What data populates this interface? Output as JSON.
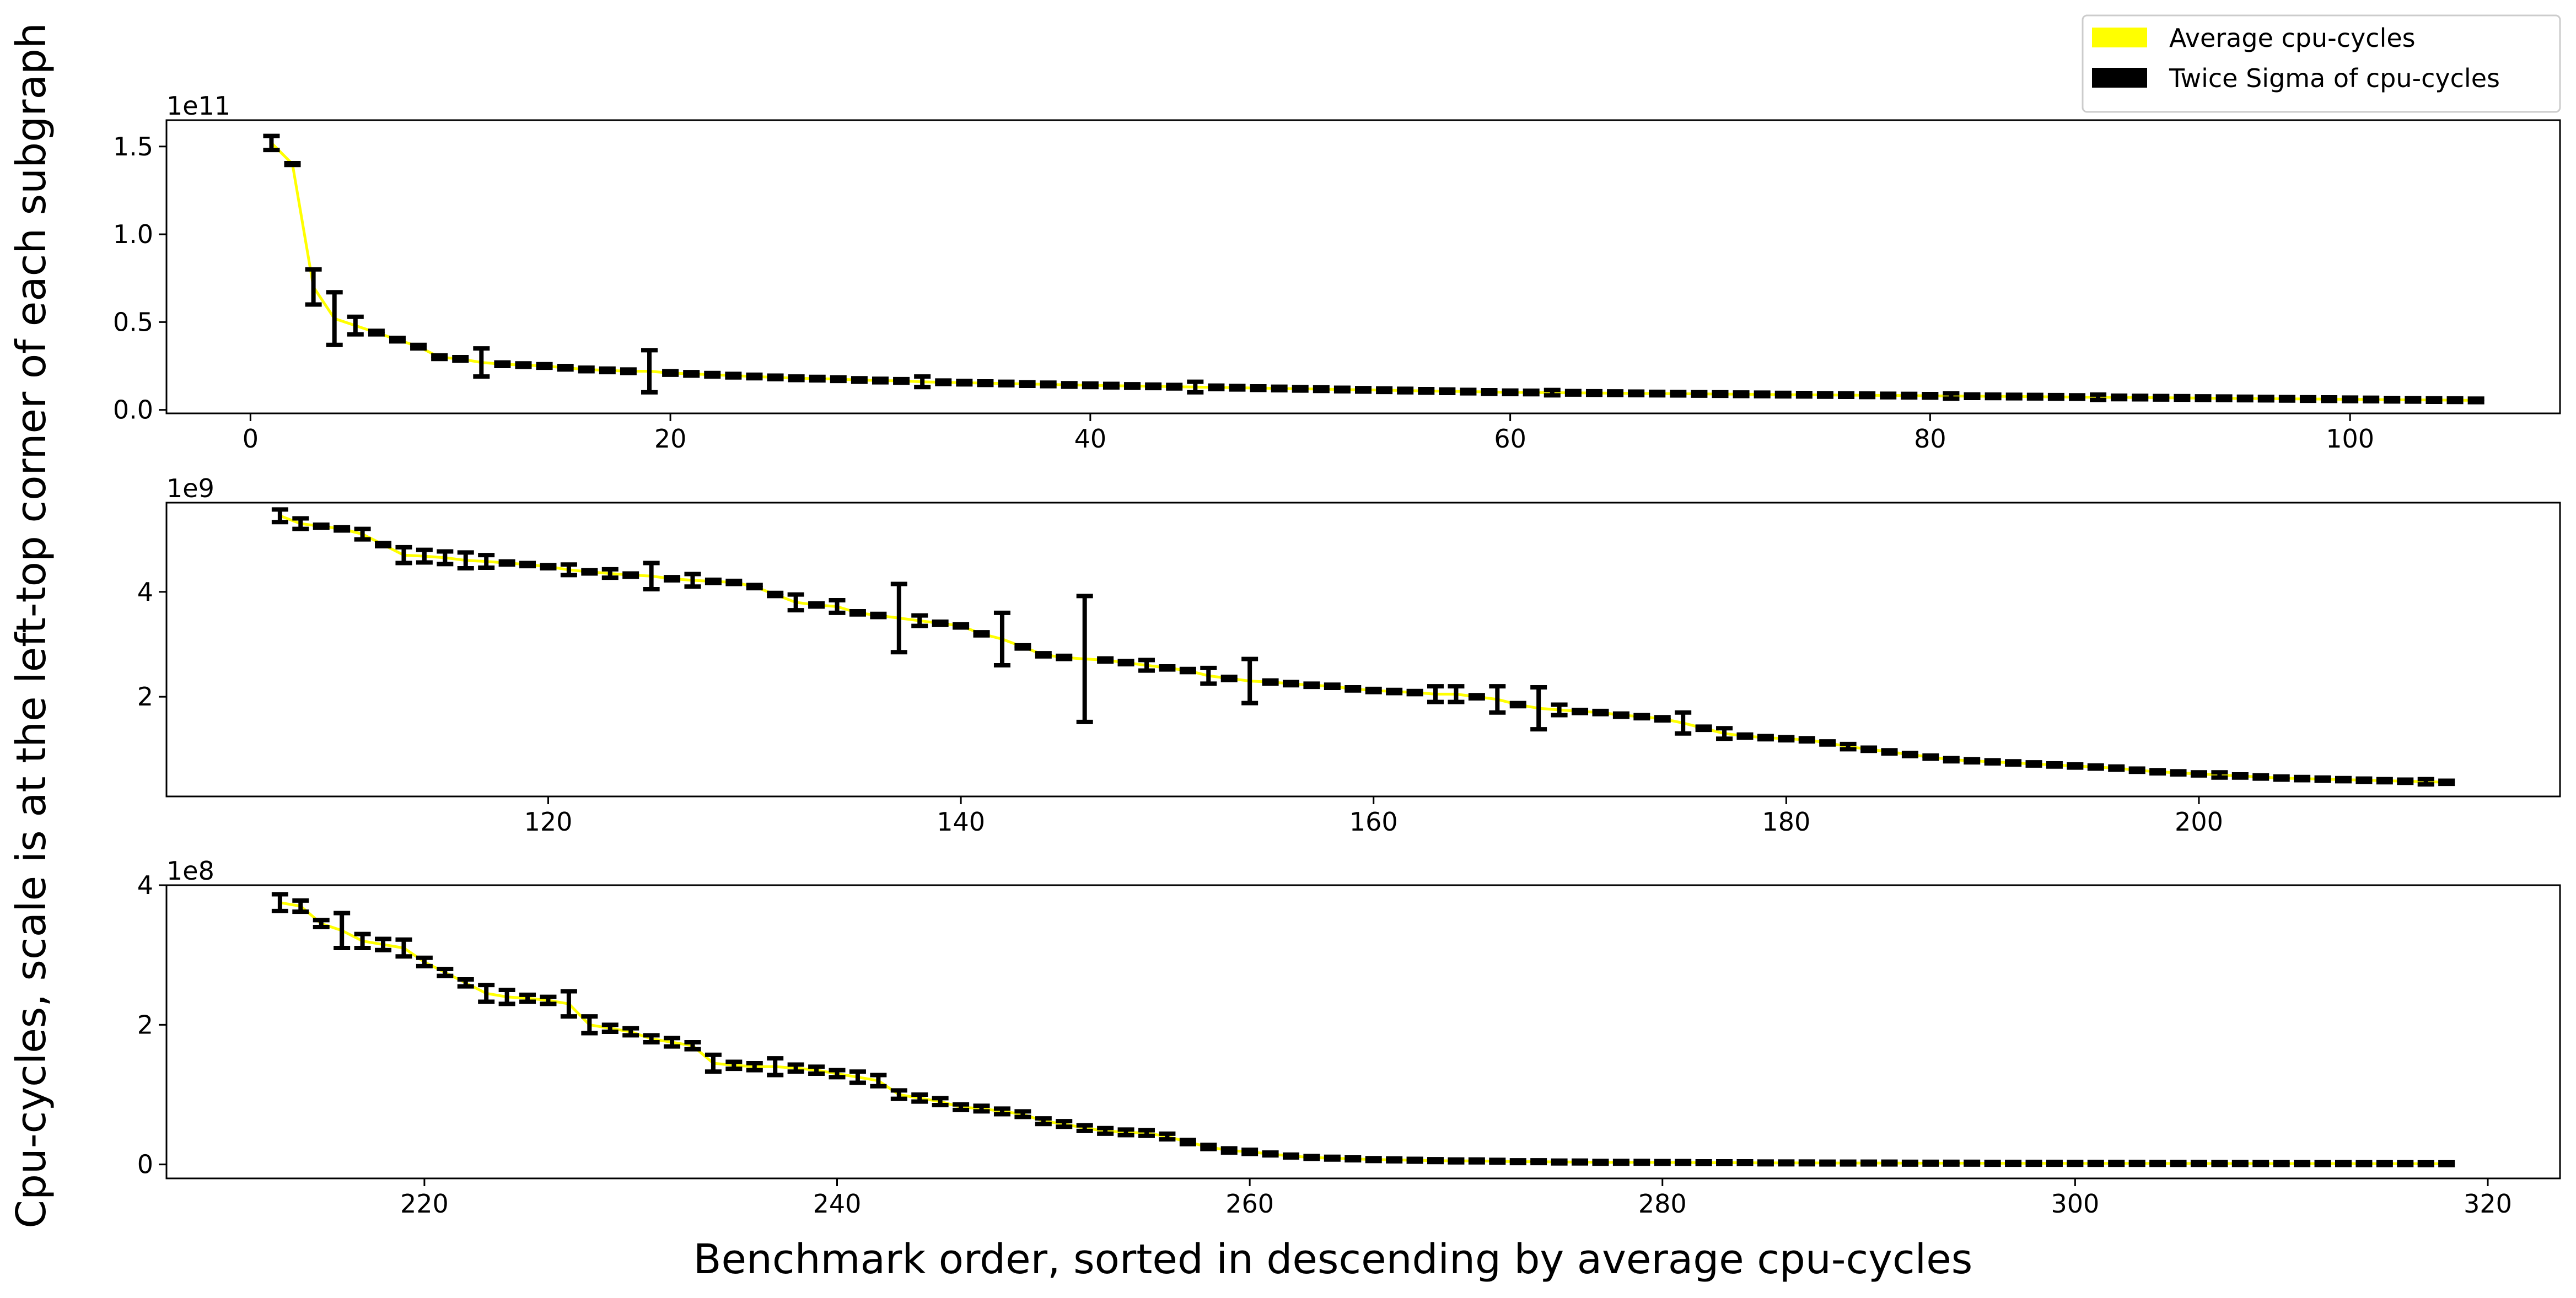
{
  "figure": {
    "ylabel": "Cpu-cycles, scale is at the left-top corner of each subgraph",
    "xlabel": "Benchmark order, sorted in descending by average cpu-cycles",
    "legend": {
      "placement": "top-right",
      "items": [
        {
          "label": "Average cpu-cycles",
          "color": "#ffff00"
        },
        {
          "label": "Twice Sigma of cpu-cycles",
          "color": "#000000"
        }
      ]
    }
  },
  "chart_data": [
    {
      "type": "line",
      "offset_text": "1e11",
      "scale": 100000000000.0,
      "xlim": [
        -4,
        110
      ],
      "ylim": [
        -0.02,
        1.65
      ],
      "xticks": [
        0,
        20,
        40,
        60,
        80,
        100
      ],
      "xtick_labels": [
        "0",
        "20",
        "40",
        "60",
        "80",
        "100"
      ],
      "yticks": [
        0,
        0.5,
        1,
        1.5
      ],
      "ytick_labels": [
        "0.0",
        "0.5",
        "1.0",
        "1.5"
      ],
      "series": [
        {
          "x": [
            1,
            2,
            3,
            4,
            5,
            6,
            7,
            8,
            9,
            10,
            11,
            12,
            13,
            14,
            15,
            16,
            17,
            18,
            19,
            20,
            21,
            22,
            23,
            24,
            25,
            26,
            27,
            28,
            29,
            30,
            31,
            32,
            33,
            34,
            35,
            36,
            37,
            38,
            39,
            40,
            41,
            42,
            43,
            44,
            45,
            46,
            47,
            48,
            49,
            50,
            51,
            52,
            53,
            54,
            55,
            56,
            57,
            58,
            59,
            60,
            61,
            62,
            63,
            64,
            65,
            66,
            67,
            68,
            69,
            70,
            71,
            72,
            73,
            74,
            75,
            76,
            77,
            78,
            79,
            80,
            81,
            82,
            83,
            84,
            85,
            86,
            87,
            88,
            89,
            90,
            91,
            92,
            93,
            94,
            95,
            96,
            97,
            98,
            99,
            100,
            101,
            102,
            103,
            104,
            105,
            106
          ],
          "mean": [
            1.52,
            1.4,
            0.7,
            0.52,
            0.48,
            0.44,
            0.4,
            0.36,
            0.3,
            0.29,
            0.27,
            0.26,
            0.255,
            0.25,
            0.24,
            0.23,
            0.225,
            0.22,
            0.22,
            0.21,
            0.205,
            0.2,
            0.195,
            0.19,
            0.185,
            0.18,
            0.178,
            0.175,
            0.17,
            0.167,
            0.165,
            0.16,
            0.157,
            0.155,
            0.152,
            0.15,
            0.147,
            0.145,
            0.142,
            0.14,
            0.138,
            0.136,
            0.134,
            0.132,
            0.13,
            0.128,
            0.126,
            0.124,
            0.122,
            0.12,
            0.118,
            0.116,
            0.114,
            0.112,
            0.11,
            0.108,
            0.106,
            0.104,
            0.102,
            0.1,
            0.099,
            0.098,
            0.097,
            0.096,
            0.095,
            0.094,
            0.093,
            0.092,
            0.091,
            0.09,
            0.089,
            0.088,
            0.087,
            0.086,
            0.085,
            0.084,
            0.083,
            0.082,
            0.081,
            0.08,
            0.079,
            0.078,
            0.077,
            0.076,
            0.075,
            0.074,
            0.073,
            0.072,
            0.071,
            0.07,
            0.069,
            0.068,
            0.067,
            0.066,
            0.065,
            0.064,
            0.063,
            0.062,
            0.061,
            0.06,
            0.059,
            0.058,
            0.057,
            0.056,
            0.055,
            0.054
          ],
          "err": [
            0.04,
            0.005,
            0.1,
            0.15,
            0.05,
            0.01,
            0.01,
            0.01,
            0.01,
            0.01,
            0.08,
            0.01,
            0.01,
            0.01,
            0.01,
            0.01,
            0.01,
            0.01,
            0.12,
            0.01,
            0.01,
            0.01,
            0.01,
            0.01,
            0.01,
            0.01,
            0.01,
            0.01,
            0.01,
            0.01,
            0.01,
            0.03,
            0.01,
            0.01,
            0.01,
            0.01,
            0.01,
            0.01,
            0.01,
            0.01,
            0.01,
            0.01,
            0.01,
            0.01,
            0.03,
            0.01,
            0.01,
            0.01,
            0.01,
            0.01,
            0.01,
            0.01,
            0.01,
            0.01,
            0.01,
            0.01,
            0.01,
            0.01,
            0.01,
            0.01,
            0.01,
            0.015,
            0.01,
            0.01,
            0.01,
            0.01,
            0.01,
            0.01,
            0.01,
            0.01,
            0.01,
            0.01,
            0.01,
            0.01,
            0.01,
            0.01,
            0.01,
            0.01,
            0.01,
            0.01,
            0.015,
            0.01,
            0.01,
            0.01,
            0.01,
            0.01,
            0.01,
            0.015,
            0.01,
            0.01,
            0.01,
            0.01,
            0.01,
            0.01,
            0.01,
            0.01,
            0.01,
            0.01,
            0.01,
            0.01,
            0.01,
            0.01,
            0.01,
            0.01,
            0.01,
            0.01
          ]
        }
      ]
    },
    {
      "type": "line",
      "offset_text": "1e9",
      "scale": 1000000000.0,
      "xlim": [
        101.5,
        217.5
      ],
      "ylim": [
        0.1,
        5.7
      ],
      "xticks": [
        120,
        140,
        160,
        180,
        200
      ],
      "xtick_labels": [
        "120",
        "140",
        "160",
        "180",
        "200"
      ],
      "yticks": [
        2,
        4
      ],
      "ytick_labels": [
        "2",
        "4"
      ],
      "series": [
        {
          "x": [
            107,
            108,
            109,
            110,
            111,
            112,
            113,
            114,
            115,
            116,
            117,
            118,
            119,
            120,
            121,
            122,
            123,
            124,
            125,
            126,
            127,
            128,
            129,
            130,
            131,
            132,
            133,
            134,
            135,
            136,
            137,
            138,
            139,
            140,
            141,
            142,
            143,
            144,
            145,
            146,
            147,
            148,
            149,
            150,
            151,
            152,
            153,
            154,
            155,
            156,
            157,
            158,
            159,
            160,
            161,
            162,
            163,
            164,
            165,
            166,
            167,
            168,
            169,
            170,
            171,
            172,
            173,
            174,
            175,
            176,
            177,
            178,
            179,
            180,
            181,
            182,
            183,
            184,
            185,
            186,
            187,
            188,
            189,
            190,
            191,
            192,
            193,
            194,
            195,
            196,
            197,
            198,
            199,
            200,
            201,
            202,
            203,
            204,
            205,
            206,
            207,
            208,
            209,
            210,
            211,
            212
          ],
          "mean": [
            5.45,
            5.3,
            5.25,
            5.2,
            5.1,
            4.9,
            4.7,
            4.68,
            4.65,
            4.6,
            4.58,
            4.55,
            4.52,
            4.48,
            4.42,
            4.38,
            4.35,
            4.32,
            4.3,
            4.25,
            4.22,
            4.2,
            4.18,
            4.1,
            3.95,
            3.8,
            3.75,
            3.72,
            3.6,
            3.55,
            3.5,
            3.45,
            3.4,
            3.35,
            3.2,
            3.1,
            2.95,
            2.8,
            2.75,
            2.72,
            2.7,
            2.65,
            2.6,
            2.55,
            2.5,
            2.4,
            2.35,
            2.3,
            2.28,
            2.25,
            2.22,
            2.2,
            2.15,
            2.12,
            2.1,
            2.08,
            2.05,
            2.05,
            2.0,
            1.95,
            1.85,
            1.78,
            1.75,
            1.72,
            1.7,
            1.65,
            1.62,
            1.58,
            1.5,
            1.4,
            1.3,
            1.25,
            1.22,
            1.2,
            1.18,
            1.12,
            1.05,
            1.0,
            0.95,
            0.9,
            0.85,
            0.8,
            0.78,
            0.76,
            0.74,
            0.72,
            0.7,
            0.68,
            0.66,
            0.64,
            0.6,
            0.57,
            0.55,
            0.53,
            0.51,
            0.49,
            0.47,
            0.45,
            0.44,
            0.43,
            0.42,
            0.41,
            0.4,
            0.39,
            0.38,
            0.37
          ],
          "err": [
            0.12,
            0.1,
            0.03,
            0.03,
            0.1,
            0.03,
            0.15,
            0.12,
            0.12,
            0.15,
            0.12,
            0.03,
            0.03,
            0.03,
            0.1,
            0.03,
            0.08,
            0.03,
            0.25,
            0.03,
            0.12,
            0.03,
            0.03,
            0.03,
            0.03,
            0.15,
            0.03,
            0.12,
            0.03,
            0.03,
            0.65,
            0.1,
            0.03,
            0.03,
            0.03,
            0.5,
            0.03,
            0.03,
            0.03,
            1.2,
            0.03,
            0.03,
            0.1,
            0.03,
            0.03,
            0.15,
            0.03,
            0.42,
            0.03,
            0.03,
            0.03,
            0.03,
            0.03,
            0.03,
            0.03,
            0.03,
            0.15,
            0.15,
            0.03,
            0.25,
            0.03,
            0.4,
            0.1,
            0.03,
            0.03,
            0.03,
            0.03,
            0.03,
            0.2,
            0.03,
            0.1,
            0.03,
            0.03,
            0.03,
            0.03,
            0.03,
            0.05,
            0.03,
            0.03,
            0.03,
            0.03,
            0.03,
            0.03,
            0.03,
            0.03,
            0.03,
            0.03,
            0.03,
            0.03,
            0.03,
            0.03,
            0.03,
            0.03,
            0.03,
            0.05,
            0.03,
            0.03,
            0.03,
            0.03,
            0.03,
            0.03,
            0.03,
            0.03,
            0.03,
            0.05,
            0.03
          ]
        }
      ]
    },
    {
      "type": "line",
      "offset_text": "1e8",
      "scale": 100000000.0,
      "xlim": [
        207.5,
        323.5
      ],
      "ylim": [
        -0.2,
        4.0
      ],
      "xticks": [
        220,
        240,
        260,
        280,
        300,
        320
      ],
      "xtick_labels": [
        "220",
        "240",
        "260",
        "280",
        "300",
        "320"
      ],
      "yticks": [
        0,
        2,
        4
      ],
      "ytick_labels": [
        "0",
        "2",
        "4"
      ],
      "series": [
        {
          "x": [
            213,
            214,
            215,
            216,
            217,
            218,
            219,
            220,
            221,
            222,
            223,
            224,
            225,
            226,
            227,
            228,
            229,
            230,
            231,
            232,
            233,
            234,
            235,
            236,
            237,
            238,
            239,
            240,
            241,
            242,
            243,
            244,
            245,
            246,
            247,
            248,
            249,
            250,
            251,
            252,
            253,
            254,
            255,
            256,
            257,
            258,
            259,
            260,
            261,
            262,
            263,
            264,
            265,
            266,
            267,
            268,
            269,
            270,
            271,
            272,
            273,
            274,
            275,
            276,
            277,
            278,
            279,
            280,
            281,
            282,
            283,
            284,
            285,
            286,
            287,
            288,
            289,
            290,
            291,
            292,
            293,
            294,
            295,
            296,
            297,
            298,
            299,
            300,
            301,
            302,
            303,
            304,
            305,
            306,
            307,
            308,
            309,
            310,
            311,
            312,
            313,
            314,
            315,
            316,
            317,
            318
          ],
          "mean": [
            3.75,
            3.7,
            3.45,
            3.35,
            3.2,
            3.15,
            3.1,
            2.9,
            2.75,
            2.6,
            2.45,
            2.4,
            2.38,
            2.35,
            2.3,
            2.0,
            1.95,
            1.9,
            1.8,
            1.75,
            1.7,
            1.45,
            1.42,
            1.4,
            1.4,
            1.38,
            1.35,
            1.3,
            1.25,
            1.2,
            1.0,
            0.95,
            0.9,
            0.82,
            0.8,
            0.76,
            0.72,
            0.62,
            0.58,
            0.52,
            0.48,
            0.46,
            0.45,
            0.4,
            0.32,
            0.25,
            0.2,
            0.18,
            0.15,
            0.12,
            0.1,
            0.09,
            0.08,
            0.07,
            0.065,
            0.06,
            0.055,
            0.05,
            0.05,
            0.045,
            0.04,
            0.04,
            0.035,
            0.035,
            0.03,
            0.03,
            0.03,
            0.028,
            0.028,
            0.025,
            0.025,
            0.025,
            0.022,
            0.022,
            0.022,
            0.02,
            0.02,
            0.02,
            0.02,
            0.018,
            0.018,
            0.018,
            0.018,
            0.016,
            0.016,
            0.016,
            0.016,
            0.015,
            0.015,
            0.015,
            0.015,
            0.014,
            0.014,
            0.014,
            0.013,
            0.013,
            0.013,
            0.012,
            0.012,
            0.012,
            0.012,
            0.011,
            0.011,
            0.011,
            0.01,
            0.01
          ],
          "err": [
            0.12,
            0.08,
            0.05,
            0.25,
            0.1,
            0.08,
            0.12,
            0.06,
            0.05,
            0.05,
            0.12,
            0.1,
            0.05,
            0.05,
            0.18,
            0.12,
            0.05,
            0.05,
            0.05,
            0.06,
            0.05,
            0.12,
            0.05,
            0.05,
            0.12,
            0.05,
            0.05,
            0.05,
            0.08,
            0.08,
            0.06,
            0.05,
            0.05,
            0.04,
            0.04,
            0.04,
            0.04,
            0.04,
            0.04,
            0.04,
            0.04,
            0.04,
            0.04,
            0.04,
            0.03,
            0.03,
            0.03,
            0.03,
            0.02,
            0.02,
            0.02,
            0.02,
            0.02,
            0.02,
            0.02,
            0.02,
            0.02,
            0.02,
            0.02,
            0.02,
            0.02,
            0.02,
            0.02,
            0.02,
            0.02,
            0.02,
            0.02,
            0.02,
            0.02,
            0.02,
            0.02,
            0.02,
            0.02,
            0.02,
            0.02,
            0.02,
            0.02,
            0.02,
            0.02,
            0.02,
            0.02,
            0.02,
            0.02,
            0.02,
            0.02,
            0.02,
            0.02,
            0.02,
            0.02,
            0.02,
            0.02,
            0.02,
            0.02,
            0.02,
            0.02,
            0.02,
            0.02,
            0.02,
            0.02,
            0.02,
            0.02,
            0.02,
            0.02,
            0.02,
            0.02,
            0.02
          ]
        }
      ]
    }
  ]
}
